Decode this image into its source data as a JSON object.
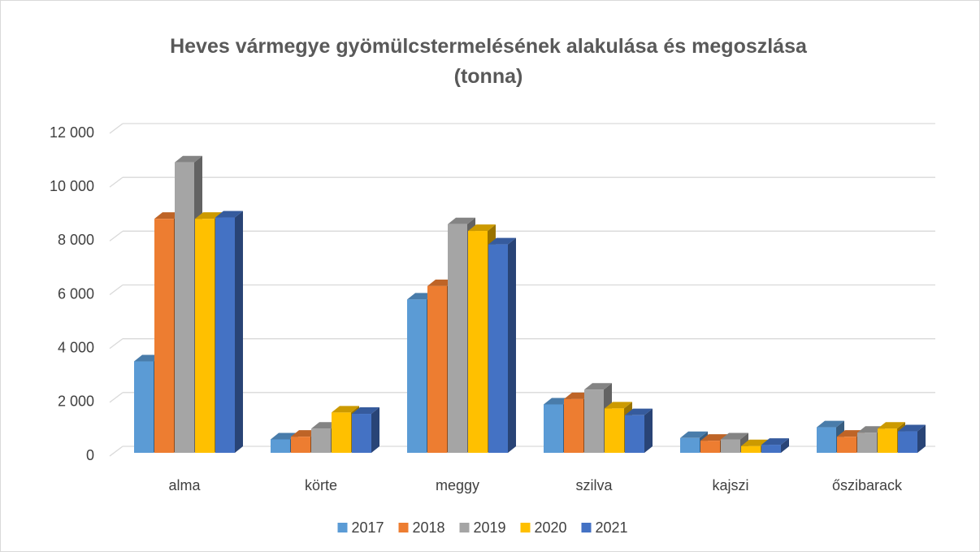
{
  "chart_data": {
    "type": "bar3d",
    "title": "Heves vármegye gyömülcstermelésének alakulása és megoszlása (tonna)",
    "categories": [
      "alma",
      "körte",
      "meggy",
      "szilva",
      "kajszi",
      "őszibarack"
    ],
    "series": [
      {
        "name": "2017",
        "color": "#5b9bd5",
        "values": [
          3400,
          500,
          5700,
          1800,
          550,
          950
        ]
      },
      {
        "name": "2018",
        "color": "#ed7d31",
        "values": [
          8700,
          600,
          6200,
          2000,
          450,
          600
        ]
      },
      {
        "name": "2019",
        "color": "#a5a5a5",
        "values": [
          10800,
          900,
          8500,
          2350,
          500,
          750
        ]
      },
      {
        "name": "2020",
        "color": "#ffc000",
        "values": [
          8700,
          1500,
          8250,
          1650,
          250,
          900
        ]
      },
      {
        "name": "2021",
        "color": "#4472c4",
        "values": [
          8750,
          1450,
          7750,
          1400,
          300,
          800
        ]
      }
    ],
    "ylim": [
      0,
      12000
    ],
    "yticks": [
      0,
      {
        "value": 2000,
        "label": "2 000"
      },
      {
        "value": 4000,
        "label": "4 000"
      },
      {
        "value": 6000,
        "label": "6 000"
      },
      {
        "value": 8000,
        "label": "8 000"
      },
      {
        "value": 10000,
        "label": "10 000"
      },
      {
        "value": 12000,
        "label": "12 000"
      }
    ],
    "grid": true,
    "legend": "bottom"
  }
}
